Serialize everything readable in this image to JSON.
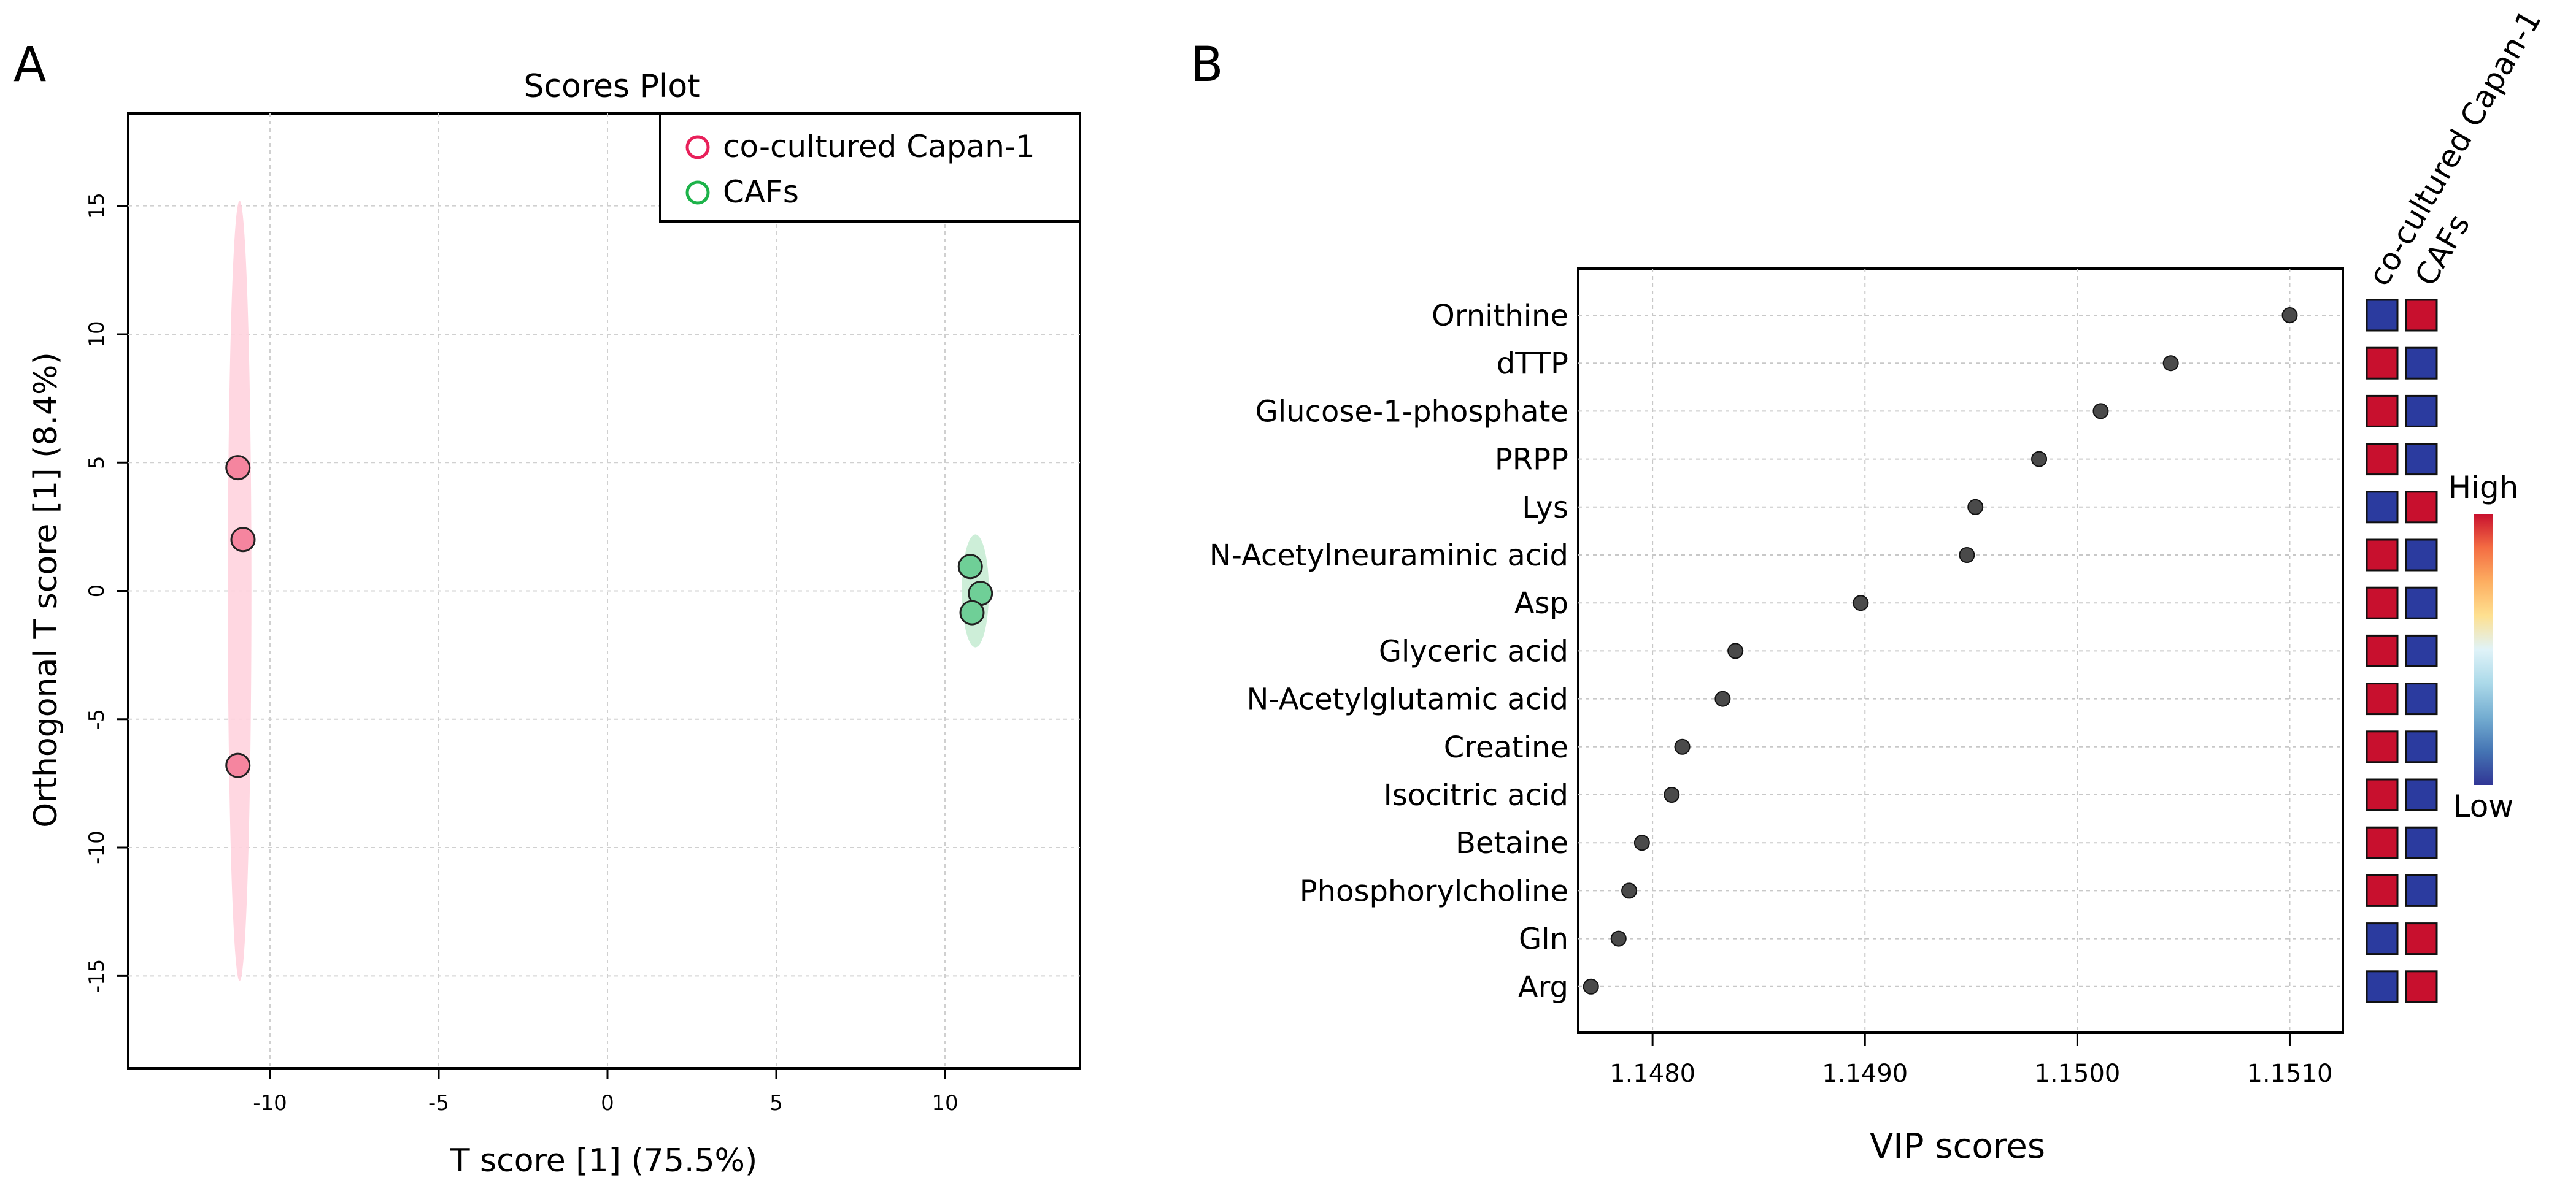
{
  "chart_data": [
    {
      "panel_label": "A",
      "type": "scatter",
      "title": "Scores Plot",
      "xlabel": "T score [1] (75.5%)",
      "ylabel": "Orthogonal T score [1] (8.4%)",
      "xlim": [
        -14.2,
        14.0
      ],
      "ylim": [
        -18.6,
        18.6
      ],
      "xticks": [
        "-10",
        "-5",
        "0",
        "5",
        "10"
      ],
      "yticks": [
        "-15",
        "-10",
        "-5",
        "0",
        "5",
        "10",
        "15"
      ],
      "xtick_values": [
        -10,
        -5,
        0,
        5,
        10
      ],
      "ytick_values": [
        -15,
        -10,
        -5,
        0,
        5,
        10,
        15
      ],
      "grid": true,
      "legend_position": "top-right",
      "series": [
        {
          "name": "co-cultured Capan-1",
          "color": "#f5859f",
          "edge_color": "#e8205a",
          "ellipse_color": "#ffd3de",
          "ellipse": {
            "cx": -10.9,
            "cy": 0.0,
            "rx": 0.35,
            "ry": 15.2
          },
          "points": [
            [
              -10.95,
              4.8
            ],
            [
              -10.8,
              2.0
            ],
            [
              -10.95,
              -6.8
            ]
          ]
        },
        {
          "name": "CAFs",
          "color": "#6fcf97",
          "edge_color": "#1db34a",
          "ellipse_color": "#c8ecd4",
          "ellipse": {
            "cx": 10.9,
            "cy": 0.0,
            "rx": 0.4,
            "ry": 2.2
          },
          "points": [
            [
              10.75,
              0.95
            ],
            [
              11.05,
              -0.1
            ],
            [
              10.8,
              -0.85
            ]
          ]
        }
      ]
    },
    {
      "panel_label": "B",
      "type": "scatter",
      "xlabel": "VIP scores",
      "xlim": [
        1.14765,
        1.15125
      ],
      "xticks": [
        "1.1480",
        "1.1490",
        "1.1500",
        "1.1510"
      ],
      "xtick_values": [
        1.148,
        1.149,
        1.15,
        1.151
      ],
      "grid": true,
      "categories": [
        "Ornithine",
        "dTTP",
        "Glucose-1-phosphate",
        "PRPP",
        "Lys",
        "N-Acetylneuraminic acid",
        "Asp",
        "Glyceric acid",
        "N-Acetylglutamic acid",
        "Creatine",
        "Isocitric acid",
        "Betaine",
        "Phosphorylcholine",
        "Gln",
        "Arg"
      ],
      "values": [
        1.151,
        1.15044,
        1.15011,
        1.14982,
        1.14952,
        1.14948,
        1.14898,
        1.14839,
        1.14833,
        1.14814,
        1.14809,
        1.14795,
        1.14789,
        1.14784,
        1.14771
      ],
      "heatmap_columns": [
        "co-cultured Capan-1",
        "CAFs"
      ],
      "heatmap": [
        [
          "low",
          "high"
        ],
        [
          "high",
          "low"
        ],
        [
          "high",
          "low"
        ],
        [
          "high",
          "low"
        ],
        [
          "low",
          "high"
        ],
        [
          "high",
          "low"
        ],
        [
          "high",
          "low"
        ],
        [
          "high",
          "low"
        ],
        [
          "high",
          "low"
        ],
        [
          "high",
          "low"
        ],
        [
          "high",
          "low"
        ],
        [
          "high",
          "low"
        ],
        [
          "high",
          "low"
        ],
        [
          "low",
          "high"
        ],
        [
          "low",
          "high"
        ]
      ],
      "colors": {
        "high": "#c8102e",
        "low": "#2b3b9f",
        "point": "#4a4a4a"
      },
      "colorbar": {
        "high_label": "High",
        "low_label": "Low",
        "stops": [
          "#c8102e",
          "#f46d43",
          "#fdae61",
          "#fee090",
          "#e0f3f8",
          "#abd9e9",
          "#74add1",
          "#4575b4",
          "#313695"
        ]
      }
    }
  ]
}
